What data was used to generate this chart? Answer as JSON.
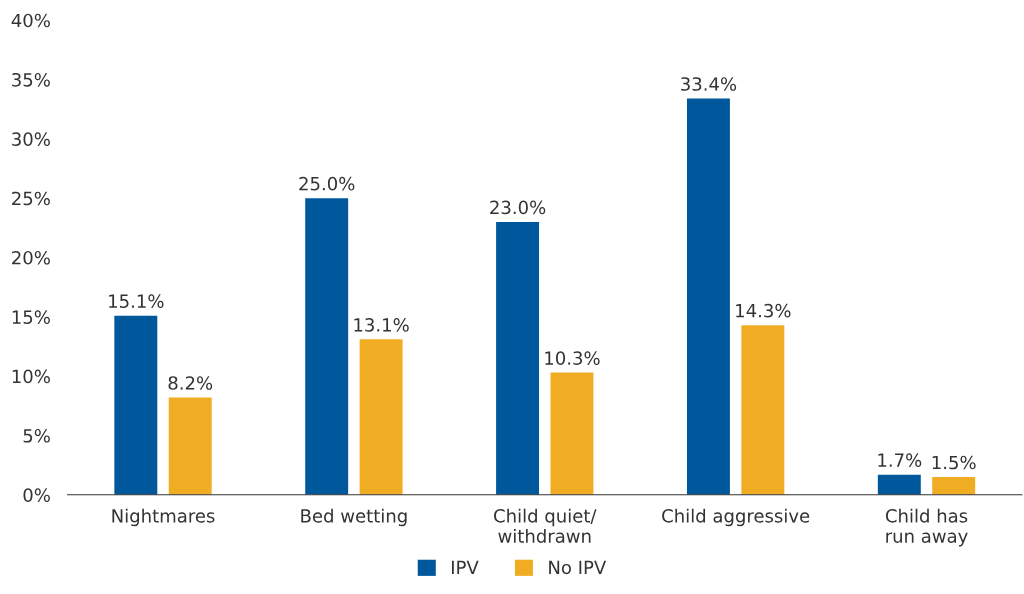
{
  "chart_data": {
    "type": "bar",
    "categories": [
      "Nightmares",
      "Bed wetting",
      "Child quiet/\nwithdrawn",
      "Child aggressive",
      "Child has\nrun away"
    ],
    "series": [
      {
        "name": "IPV",
        "color": "#00589c",
        "values": [
          15.1,
          25.0,
          23.0,
          33.4,
          1.7
        ],
        "value_labels": [
          "15.1%",
          "25.0%",
          "23.0%",
          "33.4%",
          "1.7%"
        ]
      },
      {
        "name": "No IPV",
        "color": "#f0ad24",
        "values": [
          8.2,
          13.1,
          10.3,
          14.3,
          1.5
        ],
        "value_labels": [
          "8.2%",
          "13.1%",
          "10.3%",
          "14.3%",
          "1.5%"
        ]
      }
    ],
    "ylim": [
      0,
      40
    ],
    "yticks": [
      {
        "value": 0,
        "label": "0%"
      },
      {
        "value": 5,
        "label": "5%"
      },
      {
        "value": 10,
        "label": "10%"
      },
      {
        "value": 15,
        "label": "15%"
      },
      {
        "value": 20,
        "label": "20%"
      },
      {
        "value": 25,
        "label": "25%"
      },
      {
        "value": 30,
        "label": "30%"
      },
      {
        "value": 35,
        "label": "35%"
      },
      {
        "value": 40,
        "label": "40%"
      }
    ],
    "grid": false,
    "legend": "bottom"
  }
}
